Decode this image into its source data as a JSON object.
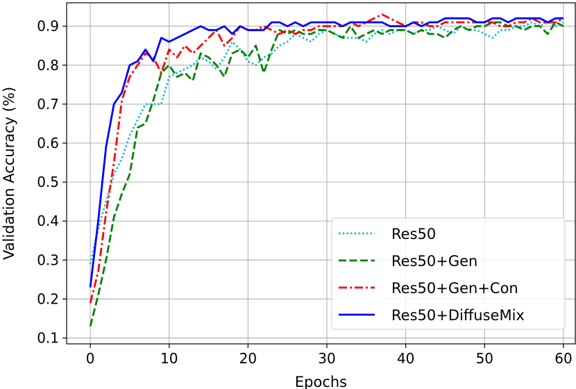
{
  "chart_data": {
    "type": "line",
    "xlabel": "Epochs",
    "ylabel": "Validation Accuracy (%)",
    "xlim": [
      -3,
      61.5
    ],
    "ylim": [
      0.085,
      0.96
    ],
    "xticks": [
      0,
      10,
      20,
      30,
      40,
      50,
      60
    ],
    "yticks": [
      0.1,
      0.2,
      0.3,
      0.4,
      0.5,
      0.6,
      0.7,
      0.8,
      0.9
    ],
    "grid": true,
    "legend_position": "lower-right",
    "series": [
      {
        "name": "Res50",
        "color": "#17becf",
        "style": "dotted",
        "x": [
          0,
          1,
          2,
          3,
          4,
          5,
          6,
          7,
          8,
          9,
          10,
          11,
          12,
          13,
          14,
          15,
          16,
          17,
          18,
          19,
          20,
          21,
          22,
          23,
          24,
          25,
          26,
          27,
          28,
          29,
          30,
          31,
          32,
          33,
          34,
          35,
          36,
          37,
          38,
          39,
          40,
          41,
          42,
          43,
          44,
          45,
          46,
          47,
          48,
          49,
          50,
          51,
          52,
          53,
          54,
          55,
          56,
          57,
          58,
          59,
          60
        ],
        "y": [
          0.29,
          0.38,
          0.45,
          0.52,
          0.56,
          0.62,
          0.66,
          0.7,
          0.7,
          0.7,
          0.77,
          0.78,
          0.79,
          0.8,
          0.82,
          0.81,
          0.79,
          0.82,
          0.86,
          0.84,
          0.81,
          0.8,
          0.82,
          0.83,
          0.85,
          0.86,
          0.88,
          0.87,
          0.86,
          0.88,
          0.89,
          0.88,
          0.87,
          0.87,
          0.87,
          0.86,
          0.88,
          0.89,
          0.88,
          0.89,
          0.89,
          0.88,
          0.89,
          0.89,
          0.9,
          0.89,
          0.88,
          0.9,
          0.89,
          0.89,
          0.88,
          0.87,
          0.89,
          0.89,
          0.9,
          0.9,
          0.91,
          0.9,
          0.91,
          0.9,
          0.91
        ]
      },
      {
        "name": "Res50+Gen",
        "color": "#008000",
        "style": "dashed",
        "x": [
          0,
          1,
          2,
          3,
          4,
          5,
          6,
          7,
          8,
          9,
          10,
          11,
          12,
          13,
          14,
          15,
          16,
          17,
          18,
          19,
          20,
          21,
          22,
          23,
          24,
          25,
          26,
          27,
          28,
          29,
          30,
          31,
          32,
          33,
          34,
          35,
          36,
          37,
          38,
          39,
          40,
          41,
          42,
          43,
          44,
          45,
          46,
          47,
          48,
          49,
          50,
          51,
          52,
          53,
          54,
          55,
          56,
          57,
          58,
          59,
          60
        ],
        "y": [
          0.13,
          0.21,
          0.3,
          0.41,
          0.47,
          0.52,
          0.64,
          0.65,
          0.71,
          0.78,
          0.8,
          0.77,
          0.78,
          0.76,
          0.83,
          0.82,
          0.8,
          0.77,
          0.83,
          0.84,
          0.82,
          0.85,
          0.78,
          0.84,
          0.89,
          0.88,
          0.89,
          0.88,
          0.88,
          0.89,
          0.89,
          0.88,
          0.87,
          0.9,
          0.87,
          0.88,
          0.89,
          0.88,
          0.89,
          0.89,
          0.89,
          0.88,
          0.89,
          0.88,
          0.88,
          0.87,
          0.89,
          0.9,
          0.89,
          0.9,
          0.9,
          0.91,
          0.91,
          0.9,
          0.9,
          0.89,
          0.9,
          0.9,
          0.88,
          0.91,
          0.9
        ]
      },
      {
        "name": "Res50+Gen+Con",
        "color": "#ff0000",
        "style": "dashdot",
        "x": [
          0,
          1,
          2,
          3,
          4,
          5,
          6,
          7,
          8,
          9,
          10,
          11,
          12,
          13,
          14,
          15,
          16,
          17,
          18,
          19,
          20,
          21,
          22,
          23,
          24,
          25,
          26,
          27,
          28,
          29,
          30,
          31,
          32,
          33,
          34,
          35,
          36,
          37,
          38,
          39,
          40,
          41,
          42,
          43,
          44,
          45,
          46,
          47,
          48,
          49,
          50,
          51,
          52,
          53,
          54,
          55,
          56,
          57,
          58,
          59,
          60
        ],
        "y": [
          0.19,
          0.27,
          0.42,
          0.55,
          0.71,
          0.77,
          0.8,
          0.83,
          0.82,
          0.78,
          0.84,
          0.82,
          0.85,
          0.83,
          0.85,
          0.87,
          0.89,
          0.85,
          0.87,
          0.9,
          0.89,
          0.89,
          0.9,
          0.89,
          0.88,
          0.89,
          0.88,
          0.89,
          0.89,
          0.9,
          0.9,
          0.9,
          0.9,
          0.91,
          0.9,
          0.91,
          0.92,
          0.93,
          0.92,
          0.91,
          0.9,
          0.91,
          0.91,
          0.9,
          0.9,
          0.91,
          0.91,
          0.91,
          0.91,
          0.91,
          0.91,
          0.91,
          0.9,
          0.9,
          0.91,
          0.91,
          0.92,
          0.91,
          0.91,
          0.91,
          0.92
        ]
      },
      {
        "name": "Res50+DiffuseMix",
        "color": "#0000ff",
        "style": "solid",
        "x": [
          0,
          1,
          2,
          3,
          4,
          5,
          6,
          7,
          8,
          9,
          10,
          11,
          12,
          13,
          14,
          15,
          16,
          17,
          18,
          19,
          20,
          21,
          22,
          23,
          24,
          25,
          26,
          27,
          28,
          29,
          30,
          31,
          32,
          33,
          34,
          35,
          36,
          37,
          38,
          39,
          40,
          41,
          42,
          43,
          44,
          45,
          46,
          47,
          48,
          49,
          50,
          51,
          52,
          53,
          54,
          55,
          56,
          57,
          58,
          59,
          60
        ],
        "y": [
          0.23,
          0.4,
          0.59,
          0.7,
          0.73,
          0.8,
          0.81,
          0.84,
          0.81,
          0.87,
          0.86,
          0.87,
          0.88,
          0.89,
          0.9,
          0.89,
          0.89,
          0.9,
          0.88,
          0.9,
          0.89,
          0.89,
          0.89,
          0.91,
          0.91,
          0.9,
          0.91,
          0.9,
          0.91,
          0.91,
          0.91,
          0.91,
          0.9,
          0.91,
          0.91,
          0.91,
          0.91,
          0.91,
          0.9,
          0.9,
          0.9,
          0.91,
          0.9,
          0.91,
          0.91,
          0.92,
          0.92,
          0.92,
          0.92,
          0.91,
          0.91,
          0.92,
          0.92,
          0.91,
          0.92,
          0.92,
          0.92,
          0.92,
          0.91,
          0.92,
          0.92
        ]
      }
    ]
  }
}
